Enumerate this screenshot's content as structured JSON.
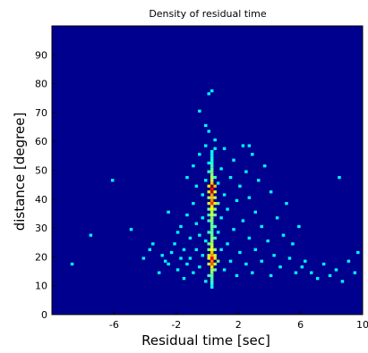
{
  "chart_data": {
    "type": "heatmap",
    "title": "Density of residual time",
    "xlabel": "Residual time [sec]",
    "ylabel": "distance [degree]",
    "xlim": [
      -10,
      10
    ],
    "ylim": [
      0,
      100
    ],
    "xticks": [
      -6,
      -2,
      2,
      6,
      10
    ],
    "xtick_labels": [
      "-6",
      "-2",
      "2",
      "6",
      "10"
    ],
    "yticks": [
      0,
      10,
      20,
      30,
      40,
      50,
      60,
      70,
      80,
      90
    ],
    "ytick_labels": [
      "0",
      "10",
      "20",
      "30",
      "40",
      "50",
      "60",
      "70",
      "80",
      "90"
    ],
    "colormap": "jet",
    "background_color": "#00008f",
    "grid": false,
    "bin_size": [
      0.2,
      1
    ],
    "peaks": [
      {
        "x": 0.2,
        "y": 44,
        "density": 1.0
      },
      {
        "x": 0.2,
        "y": 42,
        "density": 0.9
      },
      {
        "x": 0.2,
        "y": 38,
        "density": 0.75
      },
      {
        "x": 0.2,
        "y": 19,
        "density": 0.85
      },
      {
        "x": 0.2,
        "y": 17,
        "density": 0.7
      }
    ],
    "cells": [
      [
        0.2,
        44,
        1.0
      ],
      [
        0.2,
        43,
        0.8
      ],
      [
        0.4,
        44,
        0.55
      ],
      [
        0.0,
        44,
        0.5
      ],
      [
        0.2,
        42,
        0.9
      ],
      [
        0.4,
        42,
        0.45
      ],
      [
        0.0,
        42,
        0.5
      ],
      [
        0.2,
        41,
        0.6
      ],
      [
        0.2,
        40,
        0.55
      ],
      [
        0.4,
        40,
        0.4
      ],
      [
        0.0,
        40,
        0.35
      ],
      [
        0.2,
        39,
        0.65
      ],
      [
        0.2,
        38,
        0.75
      ],
      [
        0.4,
        38,
        0.45
      ],
      [
        0.0,
        38,
        0.4
      ],
      [
        0.6,
        38,
        0.25
      ],
      [
        0.2,
        37,
        0.5
      ],
      [
        0.2,
        36,
        0.45
      ],
      [
        0.0,
        36,
        0.3
      ],
      [
        0.4,
        36,
        0.3
      ],
      [
        0.2,
        35,
        0.35
      ],
      [
        0.2,
        34,
        0.4
      ],
      [
        0.4,
        34,
        0.25
      ],
      [
        0.0,
        34,
        0.2
      ],
      [
        0.2,
        33,
        0.3
      ],
      [
        0.2,
        32,
        0.3
      ],
      [
        0.0,
        32,
        0.2
      ],
      [
        0.2,
        31,
        0.25
      ],
      [
        0.2,
        30,
        0.25
      ],
      [
        0.4,
        30,
        0.2
      ],
      [
        0.2,
        29,
        0.2
      ],
      [
        0.2,
        28,
        0.25
      ],
      [
        0.0,
        28,
        0.2
      ],
      [
        0.2,
        27,
        0.25
      ],
      [
        0.2,
        26,
        0.3
      ],
      [
        0.4,
        26,
        0.2
      ],
      [
        0.2,
        25,
        0.3
      ],
      [
        0.2,
        24,
        0.35
      ],
      [
        0.0,
        24,
        0.25
      ],
      [
        0.2,
        23,
        0.4
      ],
      [
        0.2,
        22,
        0.45
      ],
      [
        0.4,
        22,
        0.3
      ],
      [
        0.0,
        22,
        0.3
      ],
      [
        0.2,
        21,
        0.55
      ],
      [
        0.2,
        20,
        0.6
      ],
      [
        0.4,
        20,
        0.4
      ],
      [
        0.0,
        20,
        0.4
      ],
      [
        0.2,
        19,
        0.85
      ],
      [
        0.4,
        19,
        0.5
      ],
      [
        0.0,
        19,
        0.45
      ],
      [
        0.2,
        18,
        0.65
      ],
      [
        0.2,
        17,
        0.7
      ],
      [
        0.4,
        17,
        0.4
      ],
      [
        0.0,
        17,
        0.4
      ],
      [
        0.6,
        18,
        0.25
      ],
      [
        0.2,
        16,
        0.5
      ],
      [
        0.2,
        15,
        0.35
      ],
      [
        0.4,
        15,
        0.25
      ],
      [
        0.2,
        14,
        0.3
      ],
      [
        0.2,
        13,
        0.25
      ],
      [
        0.0,
        13,
        0.2
      ],
      [
        0.2,
        12,
        0.2
      ],
      [
        0.2,
        11,
        0.2
      ],
      [
        0.2,
        10,
        0.15
      ],
      [
        0.2,
        9,
        0.12
      ],
      [
        0.2,
        45,
        0.55
      ],
      [
        0.2,
        46,
        0.4
      ],
      [
        0.2,
        47,
        0.35
      ],
      [
        0.4,
        47,
        0.2
      ],
      [
        0.2,
        48,
        0.3
      ],
      [
        0.2,
        49,
        0.25
      ],
      [
        0.0,
        49,
        0.18
      ],
      [
        0.2,
        50,
        0.25
      ],
      [
        0.2,
        51,
        0.2
      ],
      [
        0.2,
        52,
        0.15
      ],
      [
        0.2,
        53,
        0.15
      ],
      [
        0.2,
        54,
        0.12
      ],
      [
        0.2,
        55,
        0.1
      ],
      [
        0.2,
        56,
        0.1
      ]
    ],
    "scatter_cells": [
      [
        -8.8,
        17
      ],
      [
        -7.6,
        27
      ],
      [
        -6.2,
        46
      ],
      [
        -5.0,
        29
      ],
      [
        -4.2,
        19
      ],
      [
        -3.8,
        22
      ],
      [
        -3.6,
        24
      ],
      [
        -3.2,
        14
      ],
      [
        -3.0,
        20
      ],
      [
        -2.8,
        18
      ],
      [
        -2.6,
        35
      ],
      [
        -2.6,
        17
      ],
      [
        -2.4,
        21
      ],
      [
        -2.2,
        24
      ],
      [
        -2.0,
        28
      ],
      [
        -2.0,
        15
      ],
      [
        -1.8,
        19
      ],
      [
        -1.8,
        30
      ],
      [
        -1.6,
        22
      ],
      [
        -1.6,
        12
      ],
      [
        -1.4,
        34
      ],
      [
        -1.4,
        17
      ],
      [
        -1.4,
        47
      ],
      [
        -1.2,
        26
      ],
      [
        -1.2,
        19
      ],
      [
        -1.0,
        38
      ],
      [
        -1.0,
        14
      ],
      [
        -1.0,
        51
      ],
      [
        -0.8,
        22
      ],
      [
        -0.8,
        31
      ],
      [
        -0.8,
        44
      ],
      [
        -0.6,
        16
      ],
      [
        -0.6,
        27
      ],
      [
        -0.6,
        55
      ],
      [
        -0.4,
        20
      ],
      [
        -0.4,
        33
      ],
      [
        -0.4,
        41
      ],
      [
        -0.2,
        11
      ],
      [
        -0.2,
        25
      ],
      [
        -0.2,
        46
      ],
      [
        -0.2,
        58
      ],
      [
        0.0,
        63
      ],
      [
        0.0,
        52
      ],
      [
        0.4,
        57
      ],
      [
        0.4,
        60
      ],
      [
        0.6,
        28
      ],
      [
        0.6,
        45
      ],
      [
        0.8,
        33
      ],
      [
        0.8,
        22
      ],
      [
        0.8,
        50
      ],
      [
        1.0,
        15
      ],
      [
        1.0,
        41
      ],
      [
        1.0,
        57
      ],
      [
        1.2,
        24
      ],
      [
        1.2,
        36
      ],
      [
        1.4,
        18
      ],
      [
        1.4,
        47
      ],
      [
        1.6,
        29
      ],
      [
        1.6,
        53
      ],
      [
        1.8,
        13
      ],
      [
        1.8,
        39
      ],
      [
        2.0,
        21
      ],
      [
        2.0,
        44
      ],
      [
        2.2,
        32
      ],
      [
        2.2,
        58
      ],
      [
        2.4,
        17
      ],
      [
        2.4,
        49
      ],
      [
        2.6,
        26
      ],
      [
        2.6,
        40
      ],
      [
        2.8,
        14
      ],
      [
        2.8,
        55
      ],
      [
        3.0,
        35
      ],
      [
        3.0,
        22
      ],
      [
        3.2,
        46
      ],
      [
        3.4,
        18
      ],
      [
        3.4,
        30
      ],
      [
        3.6,
        51
      ],
      [
        3.8,
        25
      ],
      [
        4.0,
        13
      ],
      [
        4.0,
        42
      ],
      [
        4.2,
        20
      ],
      [
        4.4,
        33
      ],
      [
        4.6,
        16
      ],
      [
        4.8,
        27
      ],
      [
        5.0,
        38
      ],
      [
        5.2,
        19
      ],
      [
        5.4,
        24
      ],
      [
        5.6,
        14
      ],
      [
        5.8,
        30
      ],
      [
        6.0,
        16
      ],
      [
        6.2,
        18
      ],
      [
        6.6,
        14
      ],
      [
        7.0,
        12
      ],
      [
        7.4,
        17
      ],
      [
        7.8,
        13
      ],
      [
        8.2,
        15
      ],
      [
        8.6,
        11
      ],
      [
        9.0,
        18
      ],
      [
        9.4,
        14
      ],
      [
        8.4,
        47
      ],
      [
        9.6,
        21
      ],
      [
        0.0,
        76
      ],
      [
        0.2,
        77
      ],
      [
        -0.6,
        70
      ],
      [
        2.6,
        58
      ],
      [
        -0.2,
        65
      ]
    ]
  }
}
